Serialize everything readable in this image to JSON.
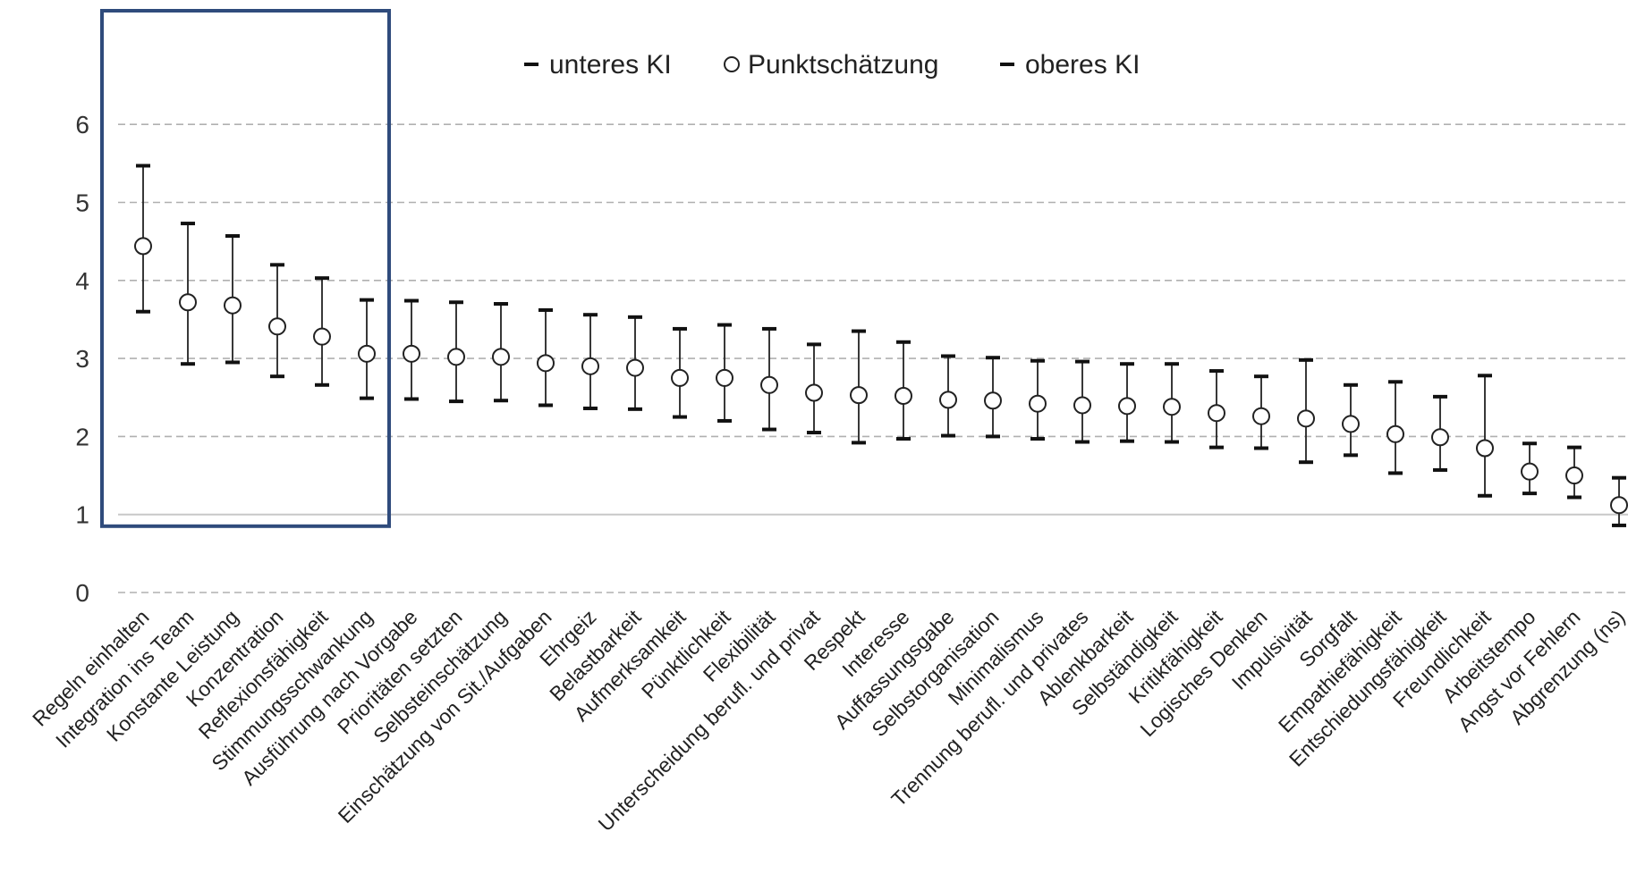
{
  "chart_data": {
    "type": "scatter",
    "title": "",
    "xlabel": "",
    "ylabel": "",
    "ylim": [
      0,
      7
    ],
    "yticks": [
      0,
      1,
      2,
      3,
      4,
      5,
      6
    ],
    "grid": true,
    "legend_position": "top-center",
    "legend": [
      {
        "key": "lower",
        "label": "unteres KI"
      },
      {
        "key": "point",
        "label": "Punktschätzung"
      },
      {
        "key": "upper",
        "label": "oberes KI"
      }
    ],
    "highlight": {
      "from": "Regeln einhalten",
      "to": "Stimmungsschwankung",
      "y_range": [
        0.85,
        7
      ],
      "color": "#2f4b7c"
    },
    "categories": [
      "Regeln einhalten",
      "Integration ins Team",
      "Konstante Leistung",
      "Konzentration",
      "Reflexionsfähigkeit",
      "Stimmungsschwankung",
      "Ausführung nach Vorgabe",
      "Prioritäten setzten",
      "Selbsteinschätzung",
      "Einschätzung von Sit./Aufgaben",
      "Ehrgeiz",
      "Belastbarkeit",
      "Aufmerksamkeit",
      "Pünktlichkeit",
      "Flexibilität",
      "Unterscheidung berufl. und privat",
      "Respekt",
      "Interesse",
      "Auffassungsgabe",
      "Selbstorganisation",
      "Minimalismus",
      "Trennung berufl. und privates",
      "Ablenkbarkeit",
      "Selbständigkeit",
      "Kritikfähigkeit",
      "Logisches Denken",
      "Impulsivität",
      "Sorgfalt",
      "Empathiefähigkeit",
      "Entschiedungsfähigkeit",
      "Freundlichkeit",
      "Arbeitstempo",
      "Angst vor Fehlern",
      "Abgrenzung (ns)"
    ],
    "series": [
      {
        "name": "unteres KI",
        "values": [
          3.6,
          2.93,
          2.95,
          2.77,
          2.66,
          2.49,
          2.48,
          2.45,
          2.46,
          2.4,
          2.36,
          2.35,
          2.25,
          2.2,
          2.09,
          2.05,
          1.92,
          1.97,
          2.01,
          2.0,
          1.97,
          1.93,
          1.94,
          1.93,
          1.86,
          1.85,
          1.67,
          1.76,
          1.53,
          1.57,
          1.24,
          1.27,
          1.22,
          0.86
        ]
      },
      {
        "name": "Punktschätzung",
        "values": [
          4.44,
          3.72,
          3.68,
          3.41,
          3.28,
          3.06,
          3.06,
          3.02,
          3.02,
          2.94,
          2.9,
          2.88,
          2.75,
          2.75,
          2.66,
          2.56,
          2.53,
          2.52,
          2.47,
          2.46,
          2.42,
          2.4,
          2.39,
          2.38,
          2.3,
          2.26,
          2.23,
          2.16,
          2.03,
          1.99,
          1.85,
          1.55,
          1.5,
          1.12
        ]
      },
      {
        "name": "oberes KI",
        "values": [
          5.47,
          4.73,
          4.57,
          4.2,
          4.03,
          3.75,
          3.74,
          3.72,
          3.7,
          3.62,
          3.56,
          3.53,
          3.38,
          3.43,
          3.38,
          3.18,
          3.35,
          3.21,
          3.03,
          3.01,
          2.97,
          2.96,
          2.93,
          2.93,
          2.84,
          2.77,
          2.98,
          2.66,
          2.7,
          2.51,
          2.78,
          1.91,
          1.86,
          1.47
        ]
      }
    ]
  }
}
